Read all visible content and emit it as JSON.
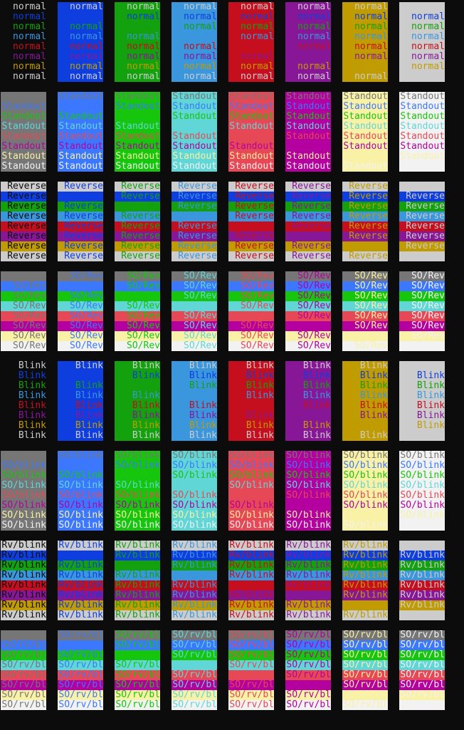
{
  "terminal": {
    "sections": [
      {
        "label": "normal"
      },
      {
        "label": "Standout"
      },
      {
        "label": "Reverse"
      },
      {
        "label": "SO/Rev"
      },
      {
        "label": "Blink"
      },
      {
        "label": "SO/blink"
      },
      {
        "label": "Rv/blink"
      },
      {
        "label": "SO/rv/bl"
      }
    ],
    "palettes": {
      "fg": [
        "#cccccc",
        "#0f3ee0",
        "#13a10e",
        "#3a96dd",
        "#c50f1f",
        "#881798",
        "#c19c00",
        "#cccccc"
      ],
      "bg": [
        "#0c0c0c",
        "#0f3ee0",
        "#13a10e",
        "#3a96dd",
        "#c50f1f",
        "#881798",
        "#c19c00",
        "#cccccc"
      ],
      "so_fg": [
        "#767676",
        "#3b78ff",
        "#16c60c",
        "#61d6d6",
        "#e74856",
        "#b4009e",
        "#f9f1a5",
        "#f2f2f2"
      ],
      "so_bg": [
        "#767676",
        "#3b78ff",
        "#16c60c",
        "#61d6d6",
        "#e74856",
        "#b4009e",
        "#f9f1a5",
        "#f2f2f2"
      ]
    }
  }
}
